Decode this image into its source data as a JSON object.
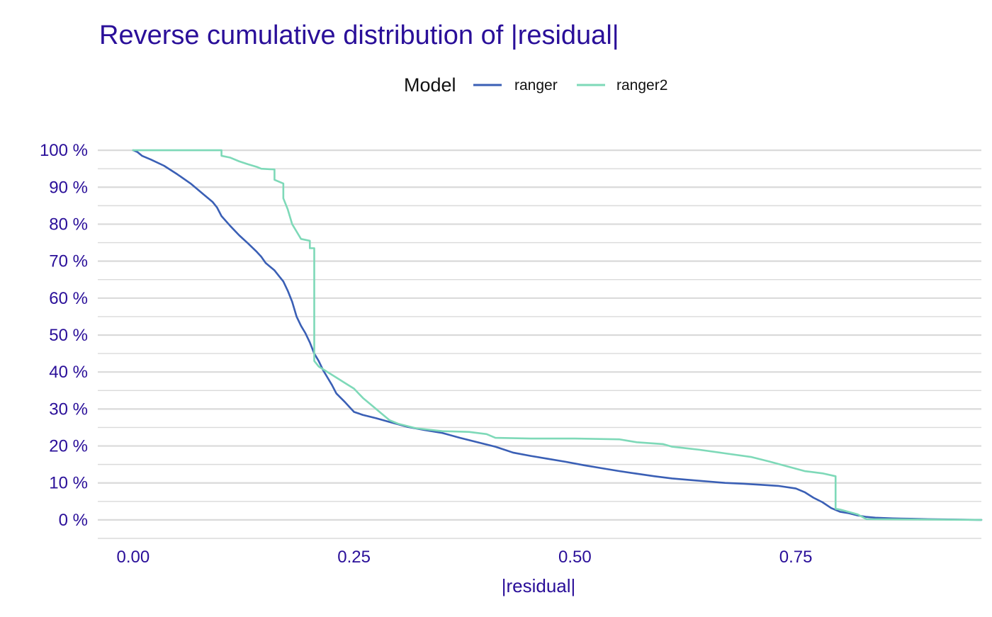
{
  "chart_data": {
    "type": "line",
    "title": "Reverse cumulative distribution of |residual|",
    "xlabel": "|residual|",
    "ylabel": "",
    "xlim": [
      -0.04,
      0.96
    ],
    "ylim": [
      -0.05,
      1.05
    ],
    "x_ticks": [
      0,
      0.25,
      0.5,
      0.75
    ],
    "x_tick_labels": [
      "0.00",
      "0.25",
      "0.50",
      "0.75"
    ],
    "y_ticks": [
      0,
      0.1,
      0.2,
      0.3,
      0.4,
      0.5,
      0.6,
      0.7,
      0.8,
      0.9,
      1.0
    ],
    "y_tick_labels": [
      "0 %",
      "10 %",
      "20 %",
      "30 %",
      "40 %",
      "50 %",
      "60 %",
      "70 %",
      "80 %",
      "90 %",
      "100 %"
    ],
    "grid": true,
    "legend": {
      "title": "Model",
      "position": "top"
    },
    "series": [
      {
        "name": "ranger",
        "color": "#3A5FB5",
        "points": [
          [
            0.0,
            1.0
          ],
          [
            0.005,
            0.995
          ],
          [
            0.01,
            0.985
          ],
          [
            0.02,
            0.975
          ],
          [
            0.035,
            0.958
          ],
          [
            0.05,
            0.935
          ],
          [
            0.065,
            0.91
          ],
          [
            0.08,
            0.88
          ],
          [
            0.09,
            0.86
          ],
          [
            0.095,
            0.845
          ],
          [
            0.1,
            0.822
          ],
          [
            0.11,
            0.795
          ],
          [
            0.12,
            0.77
          ],
          [
            0.13,
            0.748
          ],
          [
            0.14,
            0.725
          ],
          [
            0.145,
            0.712
          ],
          [
            0.15,
            0.695
          ],
          [
            0.16,
            0.675
          ],
          [
            0.165,
            0.66
          ],
          [
            0.17,
            0.645
          ],
          [
            0.175,
            0.62
          ],
          [
            0.18,
            0.59
          ],
          [
            0.185,
            0.55
          ],
          [
            0.19,
            0.525
          ],
          [
            0.195,
            0.505
          ],
          [
            0.2,
            0.48
          ],
          [
            0.205,
            0.45
          ],
          [
            0.21,
            0.43
          ],
          [
            0.215,
            0.405
          ],
          [
            0.22,
            0.385
          ],
          [
            0.225,
            0.365
          ],
          [
            0.23,
            0.342
          ],
          [
            0.235,
            0.33
          ],
          [
            0.24,
            0.318
          ],
          [
            0.245,
            0.305
          ],
          [
            0.25,
            0.292
          ],
          [
            0.26,
            0.284
          ],
          [
            0.275,
            0.275
          ],
          [
            0.29,
            0.265
          ],
          [
            0.31,
            0.252
          ],
          [
            0.33,
            0.243
          ],
          [
            0.35,
            0.235
          ],
          [
            0.37,
            0.222
          ],
          [
            0.39,
            0.21
          ],
          [
            0.41,
            0.198
          ],
          [
            0.43,
            0.182
          ],
          [
            0.45,
            0.173
          ],
          [
            0.47,
            0.165
          ],
          [
            0.49,
            0.157
          ],
          [
            0.51,
            0.148
          ],
          [
            0.53,
            0.14
          ],
          [
            0.55,
            0.132
          ],
          [
            0.57,
            0.125
          ],
          [
            0.59,
            0.118
          ],
          [
            0.61,
            0.112
          ],
          [
            0.63,
            0.108
          ],
          [
            0.65,
            0.104
          ],
          [
            0.67,
            0.1
          ],
          [
            0.69,
            0.098
          ],
          [
            0.71,
            0.095
          ],
          [
            0.73,
            0.092
          ],
          [
            0.75,
            0.085
          ],
          [
            0.76,
            0.075
          ],
          [
            0.77,
            0.06
          ],
          [
            0.78,
            0.048
          ],
          [
            0.79,
            0.032
          ],
          [
            0.8,
            0.022
          ],
          [
            0.81,
            0.018
          ],
          [
            0.82,
            0.012
          ],
          [
            0.83,
            0.008
          ],
          [
            0.84,
            0.006
          ],
          [
            0.86,
            0.004
          ],
          [
            0.88,
            0.003
          ],
          [
            0.9,
            0.002
          ],
          [
            0.93,
            0.001
          ],
          [
            0.96,
            0.0
          ]
        ]
      },
      {
        "name": "ranger2",
        "color": "#7ED9B8",
        "points": [
          [
            0.0,
            1.0
          ],
          [
            0.1,
            1.0
          ],
          [
            0.1,
            0.985
          ],
          [
            0.11,
            0.98
          ],
          [
            0.12,
            0.97
          ],
          [
            0.13,
            0.962
          ],
          [
            0.14,
            0.955
          ],
          [
            0.145,
            0.95
          ],
          [
            0.16,
            0.948
          ],
          [
            0.16,
            0.92
          ],
          [
            0.17,
            0.91
          ],
          [
            0.17,
            0.87
          ],
          [
            0.175,
            0.84
          ],
          [
            0.18,
            0.8
          ],
          [
            0.185,
            0.78
          ],
          [
            0.19,
            0.76
          ],
          [
            0.2,
            0.755
          ],
          [
            0.2,
            0.735
          ],
          [
            0.205,
            0.735
          ],
          [
            0.205,
            0.43
          ],
          [
            0.21,
            0.415
          ],
          [
            0.22,
            0.4
          ],
          [
            0.23,
            0.385
          ],
          [
            0.24,
            0.37
          ],
          [
            0.25,
            0.355
          ],
          [
            0.26,
            0.33
          ],
          [
            0.27,
            0.31
          ],
          [
            0.28,
            0.29
          ],
          [
            0.29,
            0.27
          ],
          [
            0.3,
            0.26
          ],
          [
            0.32,
            0.248
          ],
          [
            0.35,
            0.24
          ],
          [
            0.38,
            0.238
          ],
          [
            0.4,
            0.232
          ],
          [
            0.41,
            0.222
          ],
          [
            0.45,
            0.22
          ],
          [
            0.5,
            0.22
          ],
          [
            0.55,
            0.218
          ],
          [
            0.57,
            0.21
          ],
          [
            0.6,
            0.205
          ],
          [
            0.61,
            0.198
          ],
          [
            0.64,
            0.19
          ],
          [
            0.67,
            0.18
          ],
          [
            0.7,
            0.17
          ],
          [
            0.72,
            0.158
          ],
          [
            0.74,
            0.145
          ],
          [
            0.76,
            0.132
          ],
          [
            0.78,
            0.126
          ],
          [
            0.795,
            0.118
          ],
          [
            0.795,
            0.03
          ],
          [
            0.8,
            0.028
          ],
          [
            0.82,
            0.015
          ],
          [
            0.83,
            0.002
          ],
          [
            0.96,
            0.0
          ]
        ]
      }
    ]
  }
}
